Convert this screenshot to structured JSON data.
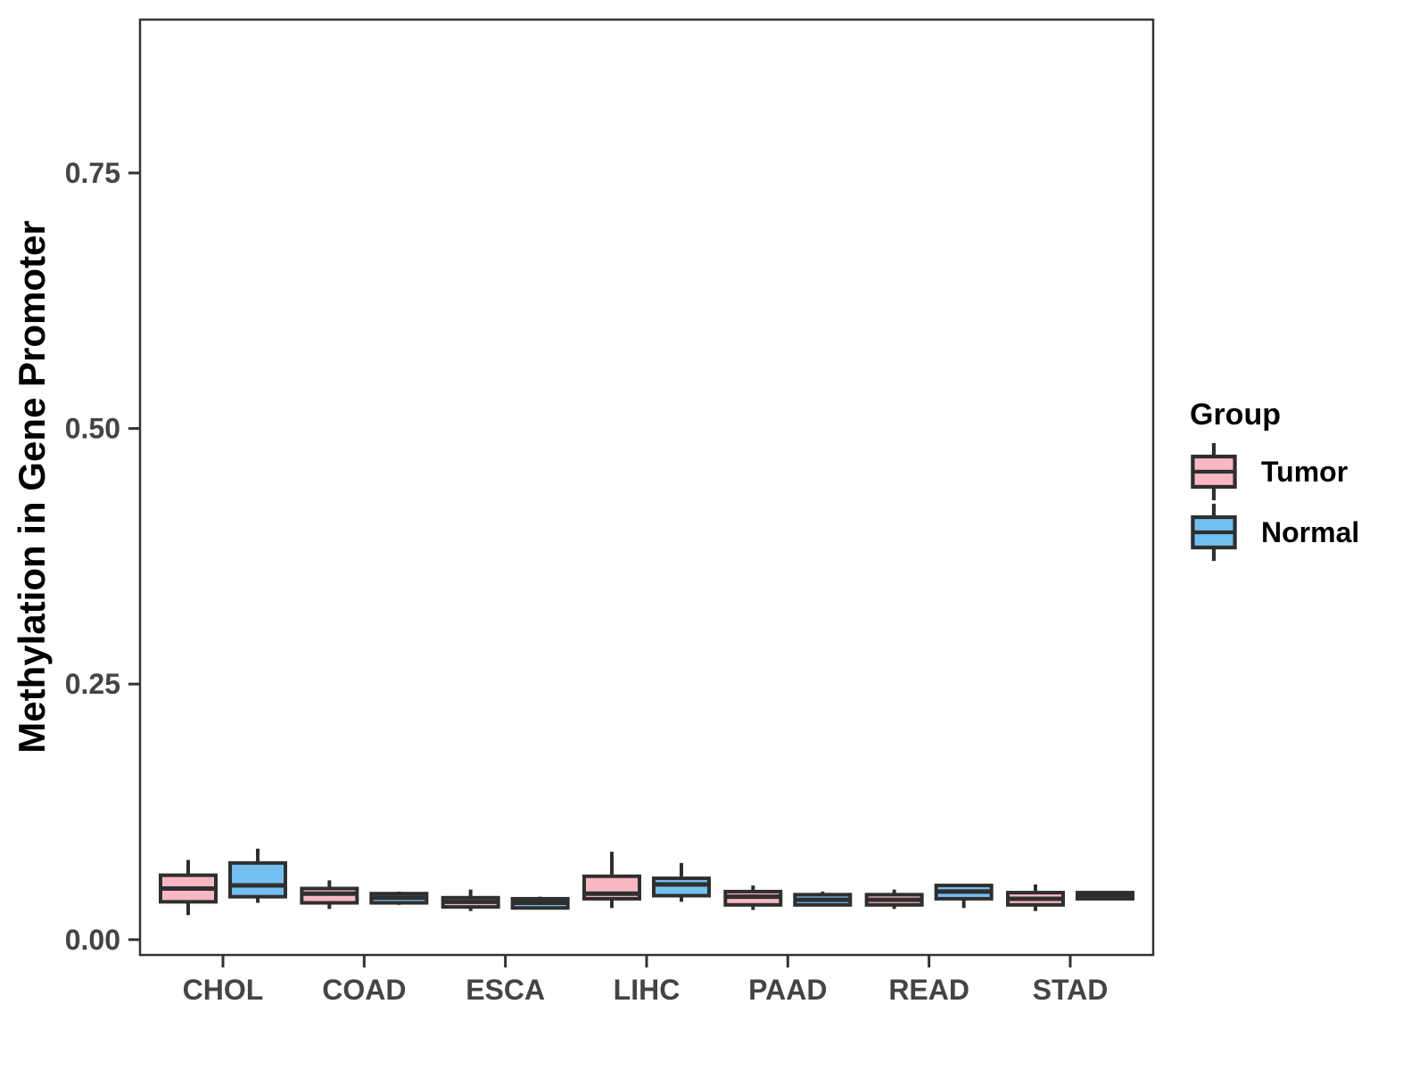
{
  "chart_data": {
    "type": "boxplot",
    "title": "",
    "xlabel": "",
    "ylabel": "Methylation in Gene Promoter",
    "categories": [
      "CHOL",
      "COAD",
      "ESCA",
      "LIHC",
      "PAAD",
      "READ",
      "STAD"
    ],
    "y_ticks": [
      {
        "value": 0.0,
        "label": "0.00"
      },
      {
        "value": 0.25,
        "label": "0.25"
      },
      {
        "value": 0.5,
        "label": "0.50"
      },
      {
        "value": 0.75,
        "label": "0.75"
      }
    ],
    "ylim": [
      -0.015,
      0.9
    ],
    "grid": false,
    "legend": {
      "title": "Group",
      "position": "right"
    },
    "series": [
      {
        "name": "Tumor",
        "fill_color": "#F9B7C4",
        "boxes": [
          {
            "category": "CHOL",
            "whisker_low": 0.024,
            "q1": 0.037,
            "median": 0.05,
            "q3": 0.063,
            "whisker_high": 0.078
          },
          {
            "category": "COAD",
            "whisker_low": 0.03,
            "q1": 0.036,
            "median": 0.045,
            "q3": 0.05,
            "whisker_high": 0.058
          },
          {
            "category": "ESCA",
            "whisker_low": 0.028,
            "q1": 0.032,
            "median": 0.037,
            "q3": 0.041,
            "whisker_high": 0.049
          },
          {
            "category": "LIHC",
            "whisker_low": 0.031,
            "q1": 0.04,
            "median": 0.045,
            "q3": 0.062,
            "whisker_high": 0.086
          },
          {
            "category": "PAAD",
            "whisker_low": 0.029,
            "q1": 0.034,
            "median": 0.042,
            "q3": 0.047,
            "whisker_high": 0.053
          },
          {
            "category": "READ",
            "whisker_low": 0.03,
            "q1": 0.034,
            "median": 0.039,
            "q3": 0.044,
            "whisker_high": 0.049
          },
          {
            "category": "STAD",
            "whisker_low": 0.028,
            "q1": 0.034,
            "median": 0.04,
            "q3": 0.046,
            "whisker_high": 0.054
          }
        ]
      },
      {
        "name": "Normal",
        "fill_color": "#73BFF1",
        "boxes": [
          {
            "category": "CHOL",
            "whisker_low": 0.036,
            "q1": 0.042,
            "median": 0.053,
            "q3": 0.075,
            "whisker_high": 0.089
          },
          {
            "category": "COAD",
            "whisker_low": 0.034,
            "q1": 0.036,
            "median": 0.041,
            "q3": 0.045,
            "whisker_high": 0.047
          },
          {
            "category": "ESCA",
            "whisker_low": 0.03,
            "q1": 0.031,
            "median": 0.036,
            "q3": 0.04,
            "whisker_high": 0.042
          },
          {
            "category": "LIHC",
            "whisker_low": 0.037,
            "q1": 0.043,
            "median": 0.054,
            "q3": 0.06,
            "whisker_high": 0.075
          },
          {
            "category": "PAAD",
            "whisker_low": 0.033,
            "q1": 0.034,
            "median": 0.039,
            "q3": 0.044,
            "whisker_high": 0.047
          },
          {
            "category": "READ",
            "whisker_low": 0.031,
            "q1": 0.04,
            "median": 0.047,
            "q3": 0.053,
            "whisker_high": 0.053
          },
          {
            "category": "STAD",
            "whisker_low": 0.04,
            "q1": 0.04,
            "median": 0.043,
            "q3": 0.046,
            "whisker_high": 0.046
          }
        ]
      }
    ],
    "colors": {
      "box_stroke": "#2F2F2F",
      "panel_border": "#333333",
      "tick_label": "#444444",
      "axis_title": "#000000"
    }
  }
}
